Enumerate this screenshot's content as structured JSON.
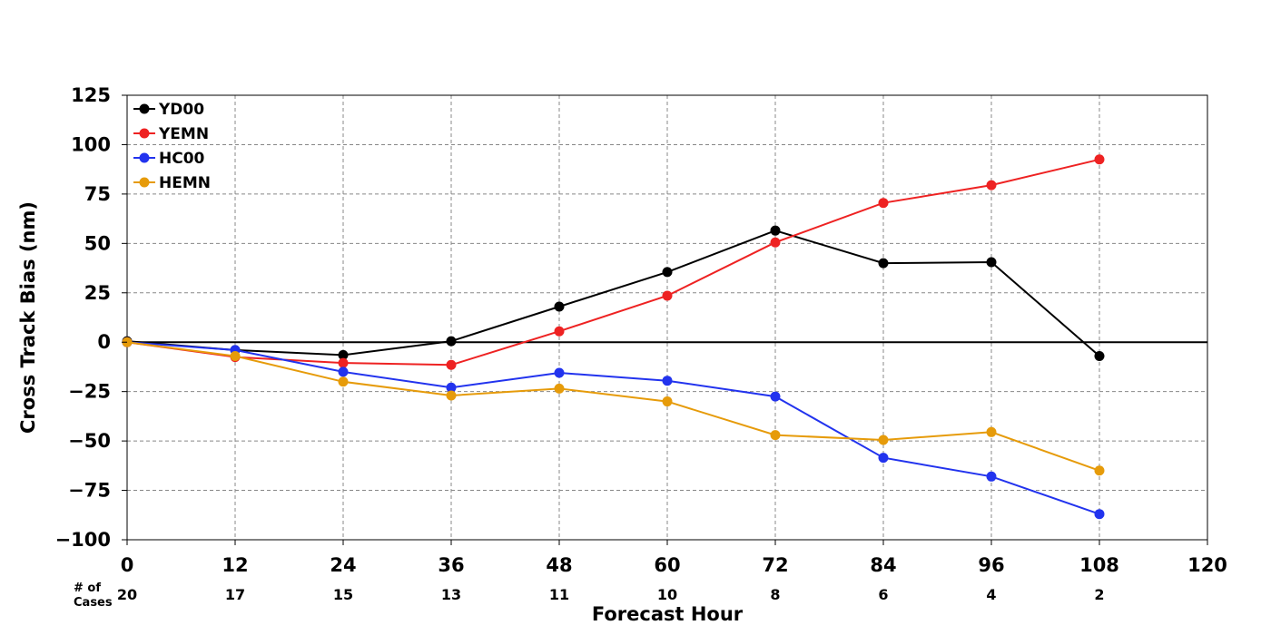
{
  "chart_data": {
    "type": "line",
    "xlabel": "Forecast Hour",
    "ylabel": "Cross Track Bias (nm)",
    "xlim": [
      0,
      120
    ],
    "ylim": [
      -100,
      125
    ],
    "x_ticks": [
      0,
      12,
      24,
      36,
      48,
      60,
      72,
      84,
      96,
      108,
      120
    ],
    "y_ticks": [
      125,
      100,
      75,
      50,
      25,
      0,
      -25,
      -50,
      -75,
      -100
    ],
    "y_tick_labels": [
      "125",
      "100",
      "75",
      "50",
      "25",
      "0",
      "−25",
      "−50",
      "−75",
      "−100"
    ],
    "grid": true,
    "legend_position": "top-left",
    "cases": {
      "header_line1": "# of",
      "header_line2": "Cases",
      "x": [
        0,
        12,
        24,
        36,
        48,
        60,
        72,
        84,
        96,
        108
      ],
      "counts": [
        "20",
        "17",
        "15",
        "13",
        "11",
        "10",
        "8",
        "6",
        "4",
        "2"
      ]
    },
    "series": [
      {
        "name": "YD00",
        "color": "#000000",
        "x": [
          0,
          12,
          24,
          36,
          48,
          60,
          72,
          84,
          96,
          108
        ],
        "values": [
          0.5,
          -4,
          -6.5,
          0.5,
          18,
          35.5,
          56.5,
          40,
          40.5,
          -7
        ]
      },
      {
        "name": "YEMN",
        "color": "#ee2222",
        "x": [
          0,
          12,
          24,
          36,
          48,
          60,
          72,
          84,
          96,
          108
        ],
        "values": [
          0,
          -7.5,
          -10.5,
          -11.5,
          5.5,
          23.5,
          50.5,
          70.5,
          79.5,
          92.5
        ]
      },
      {
        "name": "HC00",
        "color": "#2233ee",
        "x": [
          0,
          12,
          24,
          36,
          48,
          60,
          72,
          84,
          96,
          108
        ],
        "values": [
          0,
          -4,
          -15,
          -23,
          -15.5,
          -19.5,
          -27.5,
          -58.5,
          -68,
          -87
        ]
      },
      {
        "name": "HEMN",
        "color": "#e69b0a",
        "x": [
          0,
          12,
          24,
          36,
          48,
          60,
          72,
          84,
          96,
          108
        ],
        "values": [
          0,
          -7,
          -20,
          -27,
          -23.5,
          -30,
          -47,
          -49.5,
          -45.5,
          -65
        ]
      }
    ]
  }
}
